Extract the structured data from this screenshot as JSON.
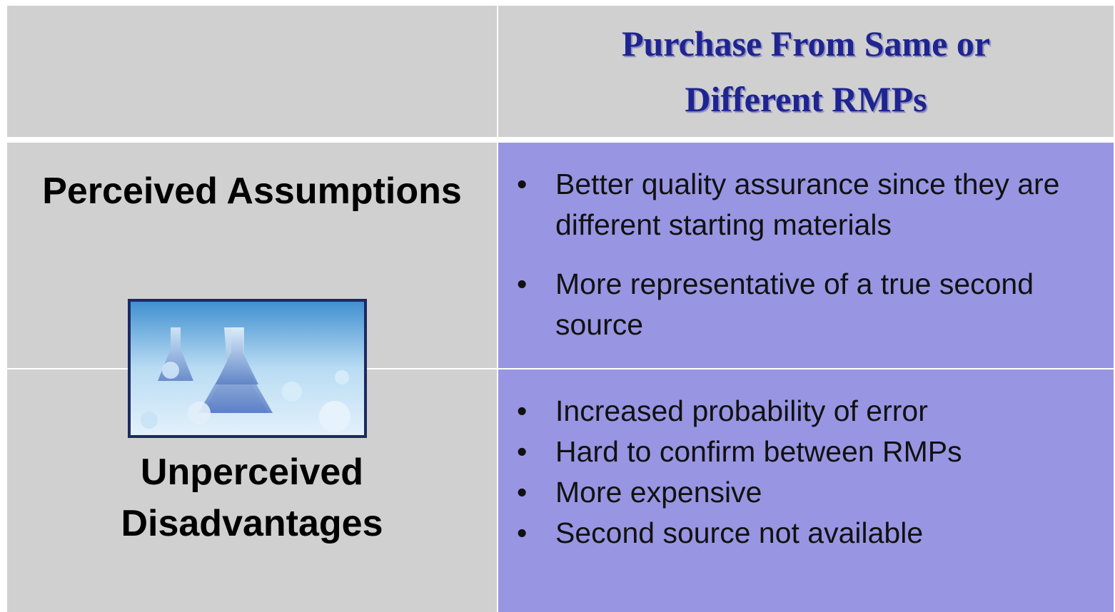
{
  "header": {
    "title": "Purchase From Same or Different RMPs"
  },
  "rows": [
    {
      "label": "Perceived Assumptions",
      "items": [
        "Better quality assurance since they are different starting materials",
        "More representative of a true second source"
      ]
    },
    {
      "label": "Unperceived Disadvantages",
      "items": [
        "Increased probability of error",
        "Hard to confirm between RMPs",
        "More expensive",
        "Second source not available"
      ]
    }
  ]
}
